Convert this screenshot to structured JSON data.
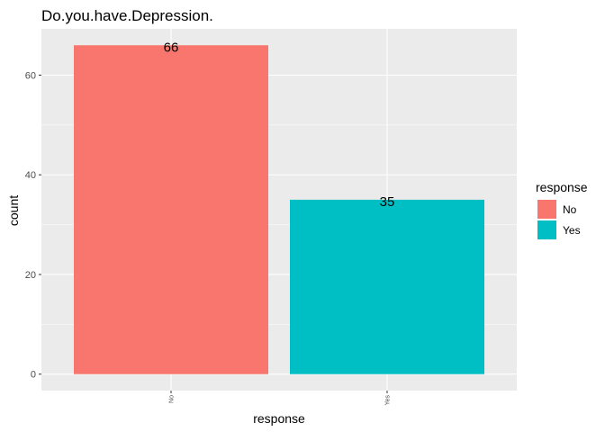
{
  "chart_data": {
    "type": "bar",
    "title": "Do.you.have.Depression.",
    "xlabel": "response",
    "ylabel": "count",
    "categories": [
      "No",
      "Yes"
    ],
    "values": [
      66,
      35
    ],
    "data_labels": [
      "66",
      "35"
    ],
    "ylim": [
      -3.3,
      69.3
    ],
    "yticks": [
      0,
      20,
      40,
      60
    ],
    "ytick_labels": [
      "0",
      "20",
      "40",
      "60"
    ],
    "colors": [
      "#F8766D",
      "#00BFC4"
    ],
    "panel_background": "#EBEBEB",
    "grid": true,
    "legend": {
      "title": "response",
      "placement": "right",
      "entries": [
        "No",
        "Yes"
      ]
    }
  }
}
